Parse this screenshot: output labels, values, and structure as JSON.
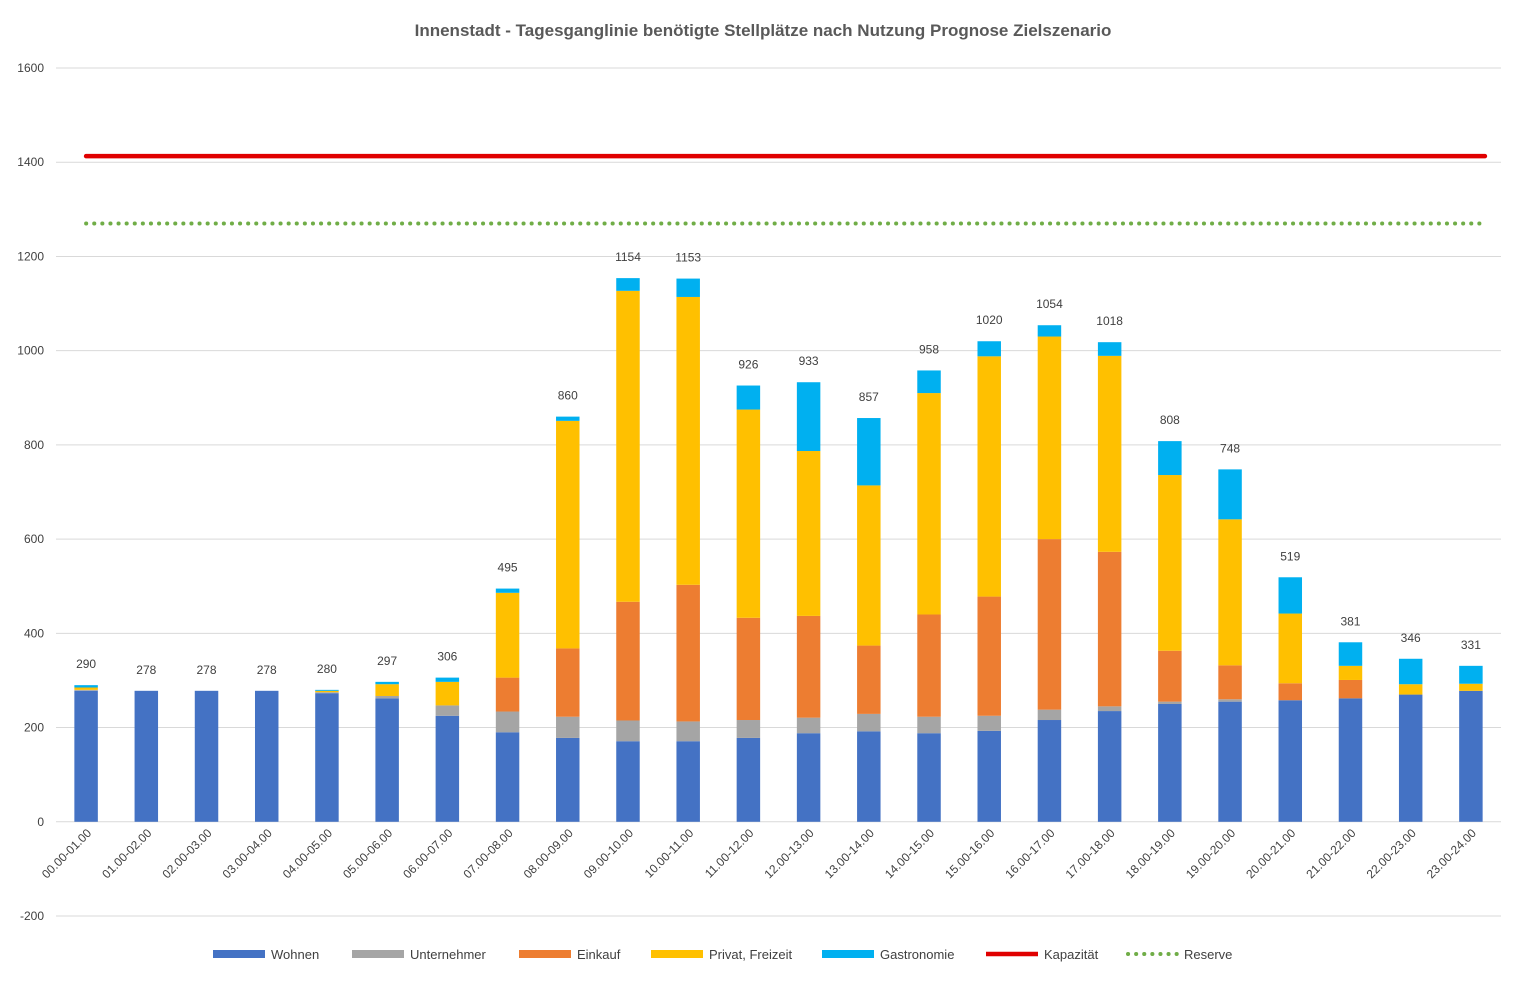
{
  "chart_data": {
    "type": "bar",
    "stacked": true,
    "title": "Innenstadt - Tagesganglinie benötigte Stellplätze nach Nutzung Prognose Zielszenario",
    "xlabel": "",
    "ylabel": "",
    "ylim": [
      -200,
      1600
    ],
    "yticks": [
      -200,
      0,
      200,
      400,
      600,
      800,
      1000,
      1200,
      1400,
      1600
    ],
    "grid": true,
    "legend_position": "bottom",
    "categories": [
      "00.00-01.00",
      "01.00-02.00",
      "02.00-03.00",
      "03.00-04.00",
      "04.00-05.00",
      "05.00-06.00",
      "06.00-07.00",
      "07.00-08.00",
      "08.00-09.00",
      "09.00-10.00",
      "10.00-11.00",
      "11.00-12.00",
      "12.00-13.00",
      "13.00-14.00",
      "14.00-15.00",
      "15.00-16.00",
      "16.00-17.00",
      "17.00-18.00",
      "18.00-19.00",
      "19.00-20.00",
      "20.00-21.00",
      "21.00-22.00",
      "22.00-23.00",
      "23.00-24.00"
    ],
    "series": [
      {
        "name": "Wohnen",
        "color": "#4472C4",
        "values": [
          278,
          278,
          278,
          278,
          273,
          262,
          225,
          190,
          178,
          171,
          171,
          178,
          188,
          192,
          188,
          193,
          216,
          235,
          250,
          255,
          258,
          262,
          270,
          278
        ]
      },
      {
        "name": "Unternehmer",
        "color": "#A5A5A5",
        "values": [
          2,
          0,
          0,
          0,
          2,
          5,
          22,
          44,
          45,
          44,
          42,
          38,
          33,
          37,
          35,
          32,
          22,
          10,
          5,
          5,
          0,
          0,
          0,
          0
        ]
      },
      {
        "name": "Einkauf",
        "color": "#ED7D31",
        "values": [
          0,
          0,
          0,
          0,
          0,
          0,
          0,
          72,
          145,
          252,
          290,
          217,
          216,
          145,
          217,
          253,
          362,
          328,
          108,
          72,
          36,
          39,
          0,
          0
        ]
      },
      {
        "name": "Privat, Freizeit",
        "color": "#FFC000",
        "values": [
          5,
          0,
          0,
          0,
          3,
          25,
          50,
          180,
          483,
          660,
          611,
          442,
          350,
          340,
          470,
          510,
          430,
          416,
          373,
          310,
          148,
          30,
          22,
          15
        ]
      },
      {
        "name": "Gastronomie",
        "color": "#00B0F0",
        "values": [
          5,
          0,
          0,
          0,
          2,
          5,
          9,
          9,
          9,
          27,
          39,
          51,
          146,
          143,
          48,
          32,
          24,
          29,
          72,
          106,
          77,
          50,
          54,
          38
        ]
      }
    ],
    "totals": [
      290,
      278,
      278,
      278,
      280,
      297,
      306,
      495,
      860,
      1154,
      1153,
      926,
      933,
      857,
      958,
      1020,
      1054,
      1018,
      808,
      748,
      519,
      381,
      346,
      331
    ],
    "lines": [
      {
        "name": "Kapazität",
        "color": "#E00000",
        "style": "solid",
        "value": 1413
      },
      {
        "name": "Reserve",
        "color": "#70AD47",
        "style": "dotted",
        "value": 1270
      }
    ]
  }
}
